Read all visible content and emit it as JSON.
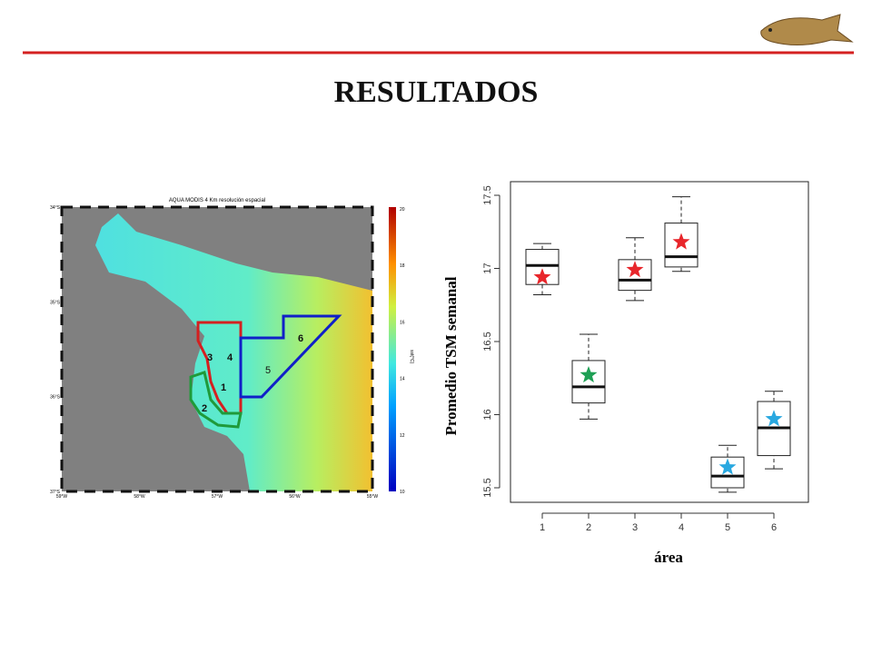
{
  "title": "RESULTADOS",
  "map": {
    "title": "AQUA MODIS 4 Km resolución espacial",
    "lat_labels": [
      "34°S",
      "35°S",
      "36°S",
      "37°S"
    ],
    "lon_labels": [
      "59°W",
      "58°W",
      "57°W",
      "56°W",
      "55°W"
    ],
    "colorbar_ticks": [
      20,
      18,
      16,
      14,
      12,
      10
    ],
    "colorbar_label": "sst(°C)",
    "area_labels": [
      "3",
      "4",
      "1",
      "2",
      "5",
      "6"
    ]
  },
  "chart_data": {
    "type": "box",
    "x_label": "área",
    "y_label": "Promedio TSM semanal",
    "categories": [
      "1",
      "2",
      "3",
      "4",
      "5",
      "6"
    ],
    "whisker_low": [
      16.82,
      15.97,
      16.78,
      16.98,
      15.47,
      15.63
    ],
    "q1": [
      16.89,
      16.08,
      16.85,
      17.01,
      15.5,
      15.72
    ],
    "median": [
      17.02,
      16.19,
      16.92,
      17.08,
      15.58,
      15.91
    ],
    "q3": [
      17.13,
      16.37,
      17.06,
      17.31,
      15.71,
      16.09
    ],
    "whisker_high": [
      17.17,
      16.55,
      17.21,
      17.49,
      15.79,
      16.16
    ],
    "stars": [
      16.94,
      16.27,
      16.99,
      17.18,
      15.64,
      15.97
    ],
    "star_colors": [
      "#e8262b",
      "#1fa055",
      "#e8262b",
      "#e8262b",
      "#29a8e0",
      "#29a8e0"
    ],
    "ylim": [
      15.5,
      17.5
    ],
    "yticks": [
      15.5,
      16.0,
      16.5,
      17.0,
      17.5
    ]
  }
}
